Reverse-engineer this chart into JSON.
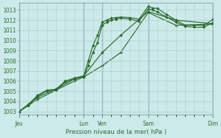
{
  "background_color": "#cceaea",
  "grid_color": "#aacccc",
  "line_color": "#2d6a2d",
  "title": "Pression niveau de la mer( hPa )",
  "ylim_min": 1002.7,
  "ylim_max": 1013.7,
  "yticks": [
    1003,
    1004,
    1005,
    1006,
    1007,
    1008,
    1009,
    1010,
    1011,
    1012,
    1013
  ],
  "xlim_min": 0,
  "xlim_max": 21,
  "day_labels": [
    "Jeu",
    "Lun",
    "Ven",
    "Sam",
    "Dim"
  ],
  "day_positions": [
    0,
    7,
    9,
    14,
    21
  ],
  "lines": [
    {
      "x": [
        0,
        1,
        2,
        3,
        4,
        5,
        6,
        7,
        7.5,
        8,
        8.5,
        9,
        9.5,
        10,
        10.5,
        11,
        12,
        13,
        14,
        14.5,
        15,
        16,
        17,
        18,
        19,
        20,
        21
      ],
      "y": [
        1003.0,
        1003.7,
        1004.6,
        1005.1,
        1005.2,
        1006.0,
        1006.3,
        1006.5,
        1008.0,
        1009.5,
        1010.5,
        1011.8,
        1012.0,
        1012.2,
        1012.25,
        1012.3,
        1012.25,
        1012.1,
        1013.35,
        1013.2,
        1013.15,
        1012.55,
        1012.0,
        1011.5,
        1011.5,
        1011.5,
        1012.05
      ]
    },
    {
      "x": [
        0,
        1,
        2,
        3,
        4,
        5,
        6,
        7,
        7.5,
        8,
        8.5,
        9,
        9.5,
        10,
        10.5,
        11,
        12,
        13,
        14,
        14.5,
        15,
        16,
        17,
        18,
        19,
        20,
        21
      ],
      "y": [
        1003.0,
        1003.6,
        1004.5,
        1005.0,
        1005.15,
        1005.9,
        1006.2,
        1006.45,
        1007.5,
        1008.8,
        1009.8,
        1011.5,
        1011.8,
        1012.0,
        1012.1,
        1012.2,
        1012.1,
        1011.9,
        1013.1,
        1013.0,
        1012.8,
        1012.3,
        1011.8,
        1011.4,
        1011.3,
        1011.3,
        1011.75
      ]
    },
    {
      "x": [
        0,
        2,
        4,
        6,
        7,
        9,
        11,
        14,
        17,
        21
      ],
      "y": [
        1003.0,
        1004.4,
        1005.2,
        1006.2,
        1006.5,
        1008.8,
        1010.5,
        1012.85,
        1012.0,
        1011.65
      ]
    },
    {
      "x": [
        0,
        2,
        4,
        6,
        7,
        9,
        11,
        14,
        17,
        21
      ],
      "y": [
        1003.0,
        1004.2,
        1005.1,
        1006.0,
        1006.4,
        1007.5,
        1008.8,
        1012.75,
        1011.5,
        1011.6
      ]
    }
  ]
}
